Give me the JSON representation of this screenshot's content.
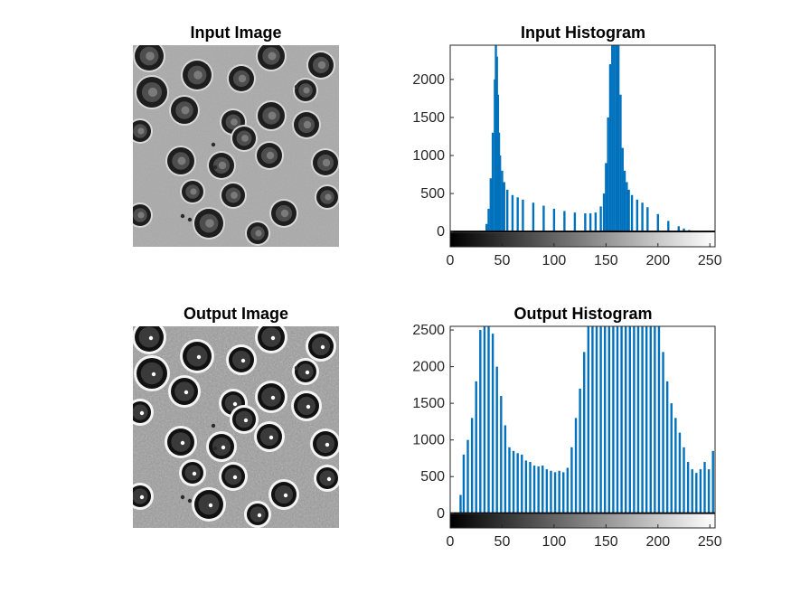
{
  "chart_data": [
    {
      "type": "image",
      "title": "Input Image",
      "content": "grayscale microscopy of red blood cells"
    },
    {
      "type": "bar",
      "title": "Input Histogram",
      "xlim": [
        0,
        255
      ],
      "ylim": [
        -200,
        2450
      ],
      "xticks": [
        0,
        50,
        100,
        150,
        200,
        250
      ],
      "yticks": [
        0,
        500,
        1000,
        1500,
        2000
      ],
      "colorbar": "grayscale 0-255",
      "bar_color": "#0072BD",
      "x": [
        0,
        10,
        20,
        30,
        33,
        35,
        37,
        39,
        41,
        43,
        44,
        45,
        46,
        47,
        48,
        50,
        52,
        55,
        60,
        65,
        70,
        80,
        90,
        100,
        110,
        120,
        130,
        135,
        140,
        145,
        148,
        150,
        152,
        154,
        156,
        158,
        160,
        162,
        164,
        166,
        168,
        170,
        172,
        175,
        180,
        185,
        190,
        200,
        210,
        220,
        225,
        230,
        235,
        240,
        245,
        255
      ],
      "values": [
        0,
        0,
        0,
        0,
        10,
        100,
        300,
        700,
        1300,
        2000,
        2450,
        2300,
        1800,
        1300,
        1000,
        800,
        650,
        550,
        480,
        450,
        420,
        380,
        340,
        300,
        270,
        250,
        240,
        240,
        250,
        330,
        500,
        900,
        1500,
        2200,
        2450,
        2450,
        2450,
        2450,
        1800,
        1100,
        800,
        650,
        550,
        480,
        420,
        380,
        320,
        230,
        140,
        70,
        40,
        20,
        5,
        0,
        0,
        0
      ]
    },
    {
      "type": "image",
      "title": "Output Image",
      "content": "contrast-enhanced grayscale microscopy of red blood cells"
    },
    {
      "type": "bar",
      "title": "Output Histogram",
      "xlim": [
        0,
        255
      ],
      "ylim": [
        -200,
        2550
      ],
      "xticks": [
        0,
        50,
        100,
        150,
        200,
        250
      ],
      "yticks": [
        0,
        500,
        1000,
        1500,
        2000,
        2500
      ],
      "colorbar": "grayscale 0-255",
      "bar_color": "#0072BD",
      "x": [
        10,
        13,
        17,
        21,
        25,
        29,
        33,
        37,
        41,
        45,
        49,
        53,
        57,
        61,
        65,
        69,
        73,
        77,
        81,
        85,
        89,
        93,
        97,
        101,
        105,
        109,
        113,
        117,
        121,
        125,
        129,
        133,
        137,
        141,
        145,
        149,
        153,
        157,
        161,
        165,
        169,
        173,
        177,
        181,
        185,
        189,
        193,
        197,
        201,
        205,
        209,
        213,
        217,
        221,
        225,
        229,
        233,
        237,
        241,
        245,
        249,
        253
      ],
      "values": [
        250,
        800,
        1000,
        1300,
        1800,
        2500,
        2550,
        2550,
        2450,
        2000,
        1600,
        1200,
        900,
        850,
        820,
        800,
        720,
        700,
        650,
        640,
        650,
        600,
        580,
        560,
        580,
        560,
        620,
        900,
        1300,
        1700,
        2200,
        2550,
        2550,
        2550,
        2550,
        2550,
        2550,
        2550,
        2550,
        2550,
        2550,
        2550,
        2550,
        2550,
        2550,
        2550,
        2550,
        2550,
        2550,
        2200,
        1800,
        1500,
        1300,
        1100,
        900,
        700,
        600,
        550,
        600,
        700,
        600,
        850
      ]
    }
  ]
}
